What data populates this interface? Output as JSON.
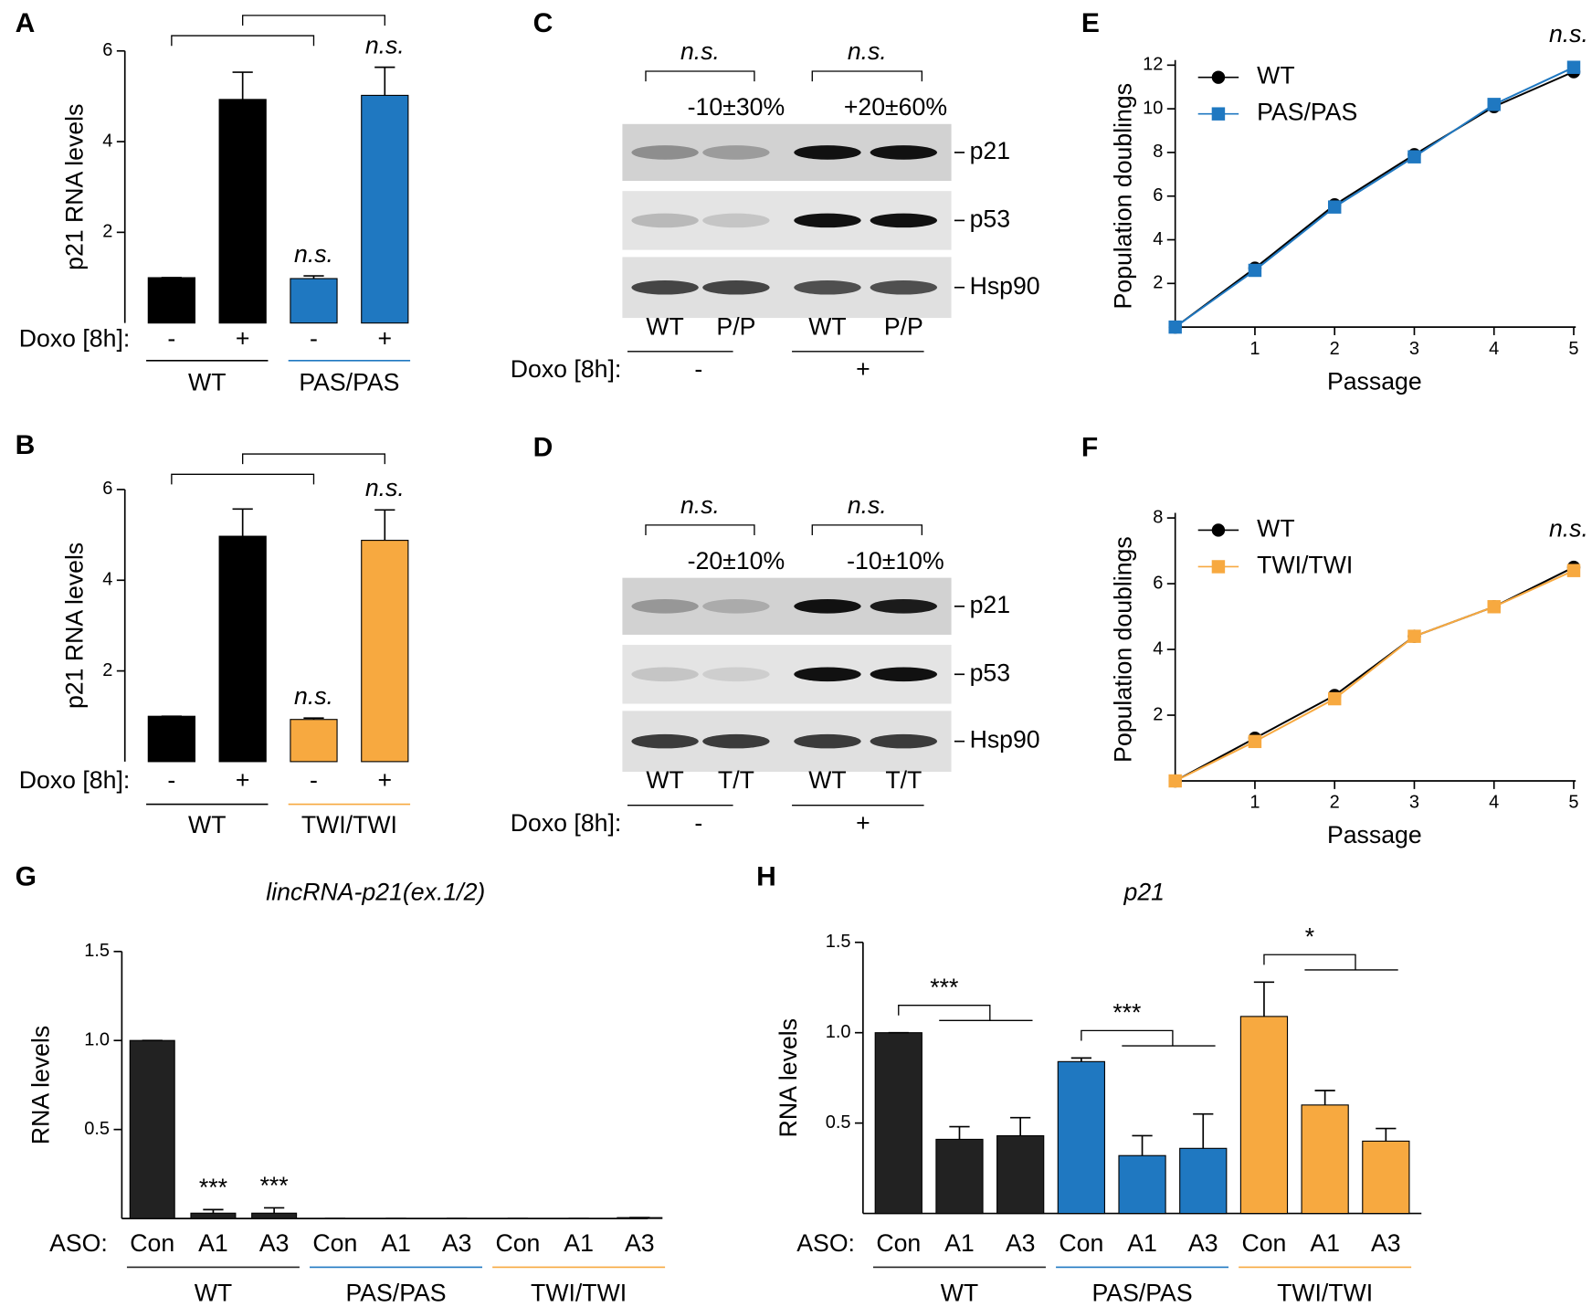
{
  "chart_data": [
    {
      "type": "bar",
      "label": "A",
      "ylabel": "p21 RNA levels",
      "ylim": [
        0,
        6
      ],
      "yticks": [
        2,
        4,
        6
      ],
      "row_label": "Doxo [8h]:",
      "categories": [
        "-",
        "+",
        "-",
        "+"
      ],
      "values": [
        1,
        4.93,
        0.98,
        5.02
      ],
      "errors": [
        0,
        0.6,
        0.06,
        0.62
      ],
      "significance": [
        null,
        null,
        "n.s.",
        "n.s."
      ],
      "groups": [
        {
          "name": "WT",
          "color": "#000000"
        },
        {
          "name": "PAS/PAS",
          "color": "#1f78c1"
        }
      ]
    },
    {
      "type": "blot",
      "label": "C",
      "row_label": "Doxo [8h]:",
      "conditions": [
        "-",
        "+"
      ],
      "lanes": [
        {
          "name": "WT",
          "color": "#000000"
        },
        {
          "name": "P/P",
          "color": "#1f78c1"
        },
        {
          "name": "WT",
          "color": "#000000"
        },
        {
          "name": "P/P",
          "color": "#1f78c1"
        }
      ],
      "comparisons": [
        {
          "significance": "n.s.",
          "change": "-10±30%",
          "color": "#1f78c1"
        },
        {
          "significance": "n.s.",
          "change": "+20±60%",
          "color": "#1f78c1"
        }
      ],
      "bands": [
        "p21",
        "p53",
        "Hsp90"
      ]
    },
    {
      "type": "line",
      "label": "E",
      "xlabel": "Passage",
      "ylabel": "Population doublings",
      "annotation": "n.s.",
      "x": [
        0,
        1,
        2,
        3,
        4,
        5
      ],
      "xlim": [
        0,
        5
      ],
      "xticks": [
        1,
        2,
        3,
        4,
        5
      ],
      "ylim": [
        0,
        12
      ],
      "yticks": [
        2,
        4,
        6,
        8,
        10,
        12
      ],
      "series": [
        {
          "name": "WT",
          "color": "#000000",
          "marker": "circle",
          "values": [
            0,
            2.7,
            5.6,
            7.9,
            10.1,
            11.7
          ]
        },
        {
          "name": "PAS/PAS",
          "color": "#1f78c1",
          "marker": "square",
          "values": [
            0,
            2.6,
            5.5,
            7.8,
            10.2,
            11.9
          ]
        }
      ]
    },
    {
      "type": "bar",
      "label": "B",
      "ylabel": "p21 RNA levels",
      "ylim": [
        0,
        6
      ],
      "yticks": [
        2,
        4,
        6
      ],
      "row_label": "Doxo [8h]:",
      "categories": [
        "-",
        "+",
        "-",
        "+"
      ],
      "values": [
        1,
        4.97,
        0.93,
        4.88
      ],
      "errors": [
        0,
        0.6,
        0.03,
        0.67
      ],
      "significance": [
        null,
        null,
        "n.s.",
        "n.s."
      ],
      "groups": [
        {
          "name": "WT",
          "color": "#000000"
        },
        {
          "name": "TWI/TWI",
          "color": "#f7a940"
        }
      ]
    },
    {
      "type": "blot",
      "label": "D",
      "row_label": "Doxo [8h]:",
      "conditions": [
        "-",
        "+"
      ],
      "lanes": [
        {
          "name": "WT",
          "color": "#000000"
        },
        {
          "name": "T/T",
          "color": "#f7a940"
        },
        {
          "name": "WT",
          "color": "#000000"
        },
        {
          "name": "T/T",
          "color": "#f7a940"
        }
      ],
      "comparisons": [
        {
          "significance": "n.s.",
          "change": "-20±10%",
          "color": "#f7a940"
        },
        {
          "significance": "n.s.",
          "change": "-10±10%",
          "color": "#f7a940"
        }
      ],
      "bands": [
        "p21",
        "p53",
        "Hsp90"
      ]
    },
    {
      "type": "line",
      "label": "F",
      "xlabel": "Passage",
      "ylabel": "Population doublings",
      "annotation": "n.s.",
      "x": [
        0,
        1,
        2,
        3,
        4,
        5
      ],
      "xlim": [
        0,
        5
      ],
      "xticks": [
        1,
        2,
        3,
        4,
        5
      ],
      "ylim": [
        0,
        8
      ],
      "yticks": [
        2,
        4,
        6,
        8
      ],
      "series": [
        {
          "name": "WT",
          "color": "#000000",
          "marker": "circle",
          "values": [
            0,
            1.3,
            2.6,
            4.4,
            5.3,
            6.5
          ]
        },
        {
          "name": "TWI/TWI",
          "color": "#f7a940",
          "marker": "square",
          "values": [
            0,
            1.2,
            2.5,
            4.4,
            5.3,
            6.4
          ]
        }
      ]
    },
    {
      "type": "bar",
      "label": "G",
      "title": "lincRNA-p21(ex.1/2)",
      "ylabel": "RNA levels",
      "ylim": [
        0,
        1.5
      ],
      "yticks": [
        0.5,
        {
          "value": 1,
          "label": "1.0"
        },
        1.5
      ],
      "row_label": "ASO:",
      "categories": [
        "Con",
        "A1",
        "A3",
        "Con",
        "A1",
        "A3",
        "Con",
        "A1",
        "A3"
      ],
      "values": [
        1,
        0.03,
        0.03,
        0,
        0,
        0,
        0,
        0,
        0.005
      ],
      "errors": [
        0,
        0.02,
        0.03,
        0,
        0,
        0,
        0,
        0,
        0
      ],
      "significance": [
        null,
        "***",
        "***",
        null,
        null,
        null,
        null,
        null,
        null
      ],
      "groups": [
        {
          "name": "WT",
          "color": "#222222"
        },
        {
          "name": "PAS/PAS",
          "color": "#1f78c1"
        },
        {
          "name": "TWI/TWI",
          "color": "#f7a940"
        }
      ]
    },
    {
      "type": "bar",
      "label": "H",
      "title": "p21",
      "ylabel": "RNA levels",
      "ylim": [
        0,
        1.5
      ],
      "yticks": [
        0.5,
        {
          "value": 1,
          "label": "1.0"
        },
        1.5
      ],
      "row_label": "ASO:",
      "categories": [
        "Con",
        "A1",
        "A3",
        "Con",
        "A1",
        "A3",
        "Con",
        "A1",
        "A3"
      ],
      "values": [
        1,
        0.41,
        0.43,
        0.84,
        0.32,
        0.36,
        1.09,
        0.6,
        0.4
      ],
      "errors": [
        0,
        0.07,
        0.1,
        0.02,
        0.11,
        0.19,
        0.19,
        0.08,
        0.07
      ],
      "group_significance": [
        "***",
        "***",
        "*"
      ],
      "groups": [
        {
          "name": "WT",
          "color": "#222222"
        },
        {
          "name": "PAS/PAS",
          "color": "#1f78c1"
        },
        {
          "name": "TWI/TWI",
          "color": "#f7a940"
        }
      ]
    }
  ]
}
